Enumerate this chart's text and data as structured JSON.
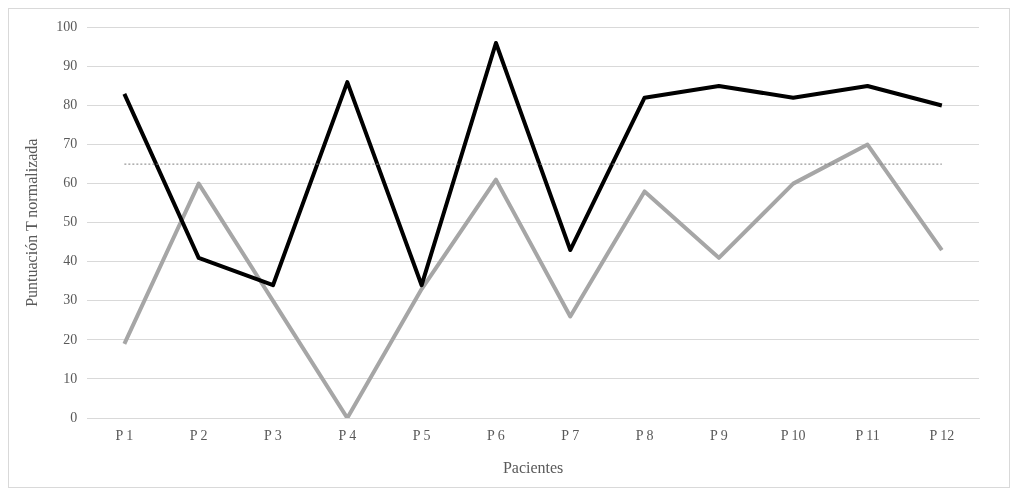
{
  "chart_data": {
    "type": "line",
    "xlabel": "Pacientes",
    "ylabel": "Puntuación T normalizada",
    "categories": [
      "P 1",
      "P 2",
      "P 3",
      "P 4",
      "P 5",
      "P 6",
      "P 7",
      "P 8",
      "P 9",
      "P 10",
      "P 11",
      "P 12"
    ],
    "series": [
      {
        "color": "#000000",
        "values": [
          83,
          41,
          34,
          86,
          34,
          96,
          43,
          82,
          85,
          82,
          85,
          80
        ]
      },
      {
        "color": "#a6a6a6",
        "values": [
          19,
          60,
          30,
          0,
          33,
          61,
          26,
          58,
          41,
          60,
          70,
          43
        ]
      }
    ],
    "ylim": [
      0,
      100
    ],
    "yticks": [
      0,
      10,
      20,
      30,
      40,
      50,
      60,
      70,
      80,
      90,
      100
    ],
    "grid": "y",
    "legend": false,
    "marker": "none",
    "line_style": "solid",
    "ref_lines": [
      {
        "axis": "y",
        "value": 65,
        "color": "#7f7f7f",
        "line_style": "dotted"
      }
    ]
  }
}
